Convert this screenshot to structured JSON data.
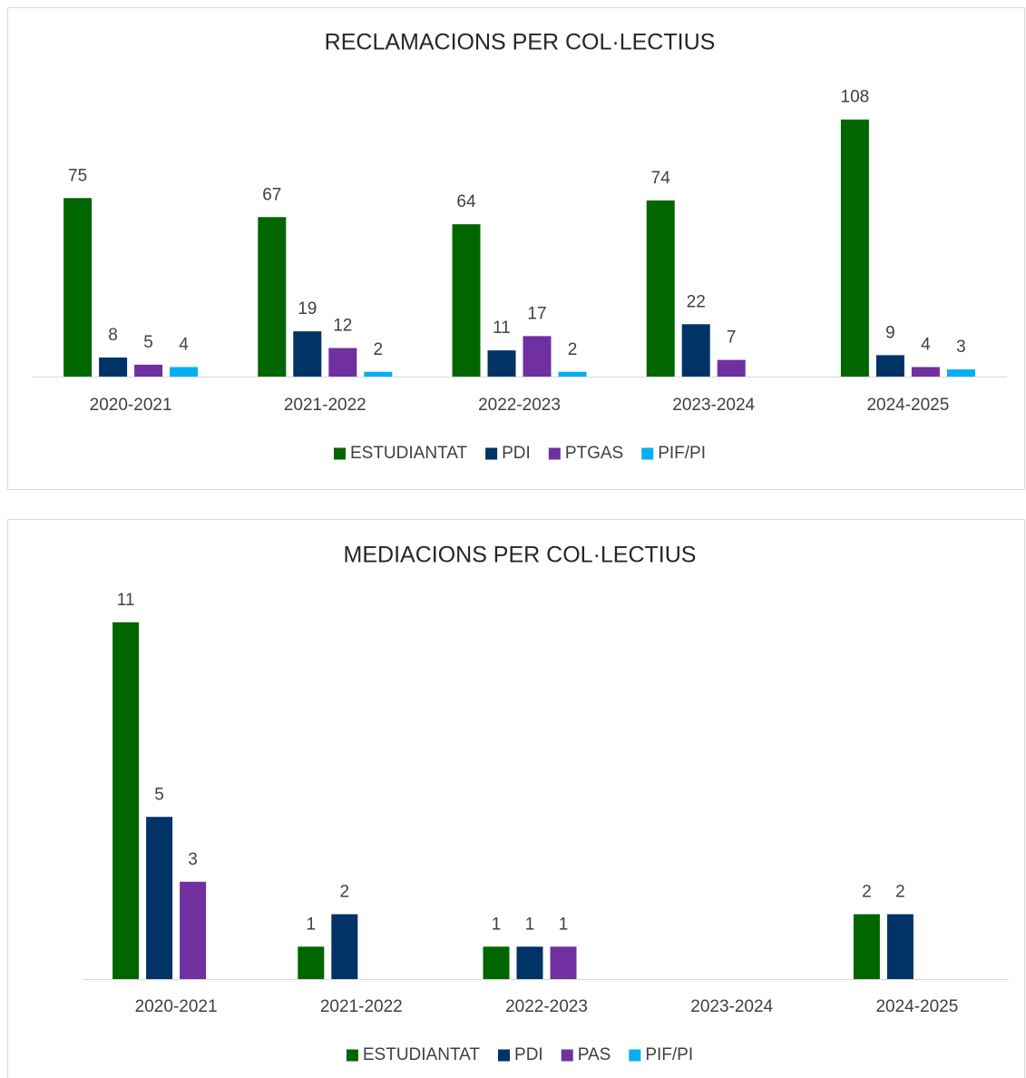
{
  "chart_data": [
    {
      "type": "bar",
      "title": "RECLAMACIONS PER COL·LECTIUS",
      "categories": [
        "2020-2021",
        "2021-2022",
        "2022-2023",
        "2023-2024",
        "2024-2025"
      ],
      "series": [
        {
          "name": "ESTUDIANTAT",
          "color": "#006600",
          "values": [
            75,
            67,
            64,
            74,
            108
          ]
        },
        {
          "name": "PDI",
          "color": "#003366",
          "values": [
            8,
            19,
            11,
            22,
            9
          ]
        },
        {
          "name": "PTGAS",
          "color": "#7030a0",
          "values": [
            5,
            12,
            17,
            7,
            4
          ]
        },
        {
          "name": "PIF/PI",
          "color": "#00b0f0",
          "values": [
            4,
            2,
            2,
            null,
            3
          ]
        }
      ],
      "ylim": [
        0,
        122
      ],
      "legend": "bottom"
    },
    {
      "type": "bar",
      "title": "MEDIACIONS PER COL·LECTIUS",
      "categories": [
        "2020-2021",
        "2021-2022",
        "2022-2023",
        "2023-2024",
        "2024-2025"
      ],
      "series": [
        {
          "name": "ESTUDIANTAT",
          "color": "#006600",
          "values": [
            11,
            1,
            1,
            null,
            2
          ]
        },
        {
          "name": "PDI",
          "color": "#003366",
          "values": [
            5,
            2,
            1,
            null,
            2
          ]
        },
        {
          "name": "PAS",
          "color": "#7030a0",
          "values": [
            3,
            null,
            1,
            null,
            null
          ]
        },
        {
          "name": "PIF/PI",
          "color": "#00b0f0",
          "values": [
            null,
            null,
            null,
            null,
            null
          ]
        }
      ],
      "ylim": [
        0,
        12
      ],
      "legend": "bottom"
    }
  ]
}
